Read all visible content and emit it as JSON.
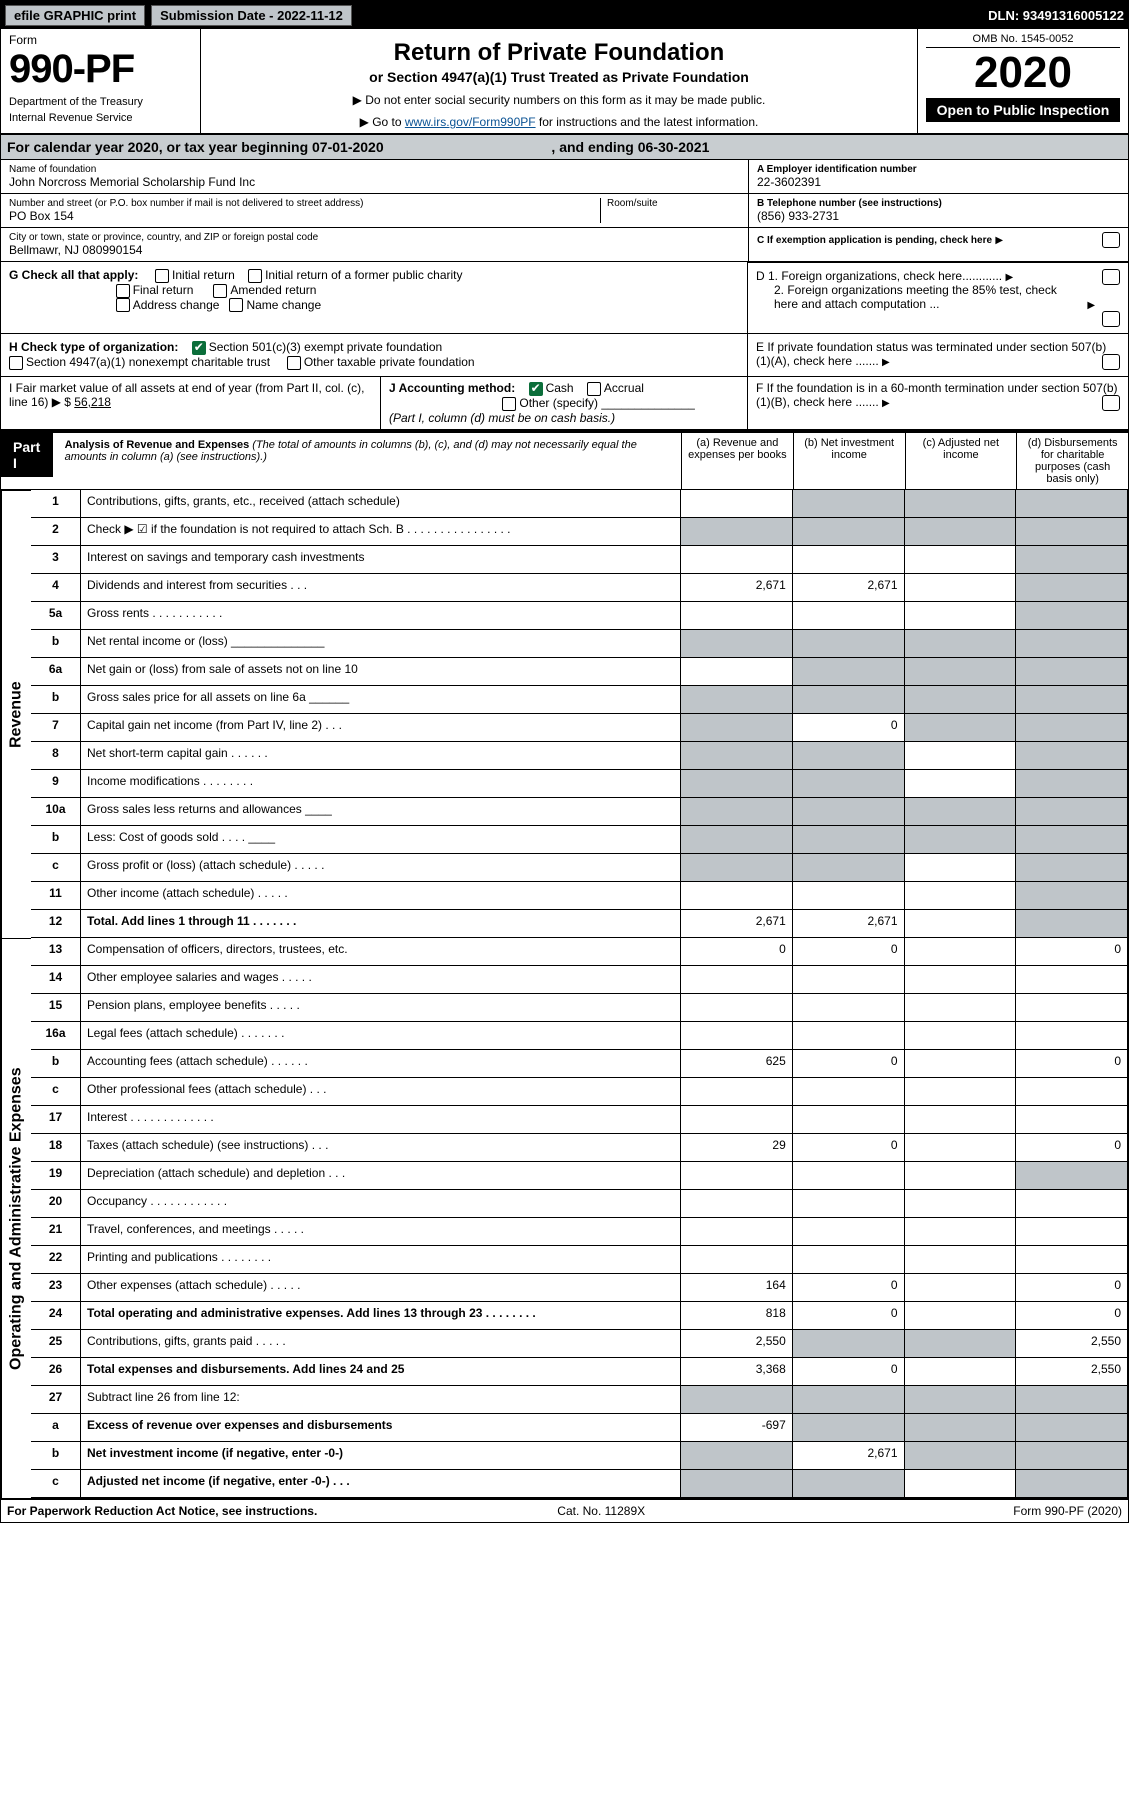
{
  "topbar": {
    "efile": "efile GRAPHIC print",
    "subdate_label": "Submission Date - 2022-11-12",
    "dln": "DLN: 93491316005122"
  },
  "header": {
    "form_label": "Form",
    "form_no": "990-PF",
    "dept1": "Department of the Treasury",
    "dept2": "Internal Revenue Service",
    "title": "Return of Private Foundation",
    "subtitle": "or Section 4947(a)(1) Trust Treated as Private Foundation",
    "note1": "▶ Do not enter social security numbers on this form as it may be made public.",
    "note2_pre": "▶ Go to ",
    "note2_link": "www.irs.gov/Form990PF",
    "note2_post": " for instructions and the latest information.",
    "omb": "OMB No. 1545-0052",
    "year": "2020",
    "badge": "Open to Public Inspection"
  },
  "cal": {
    "text_a": "For calendar year 2020, or tax year beginning 07-01-2020",
    "text_b": ", and ending 06-30-2021"
  },
  "ident": {
    "name_lbl": "Name of foundation",
    "name": "John Norcross Memorial Scholarship Fund Inc",
    "addr_lbl": "Number and street (or P.O. box number if mail is not delivered to street address)",
    "addr": "PO Box 154",
    "room_lbl": "Room/suite",
    "city_lbl": "City or town, state or province, country, and ZIP or foreign postal code",
    "city": "Bellmawr, NJ 080990154",
    "a_lbl": "A Employer identification number",
    "a_val": "22-3602391",
    "b_lbl": "B Telephone number (see instructions)",
    "b_val": "(856) 933-2731",
    "c_lbl": "C If exemption application is pending, check here"
  },
  "checks": {
    "g_lbl": "G Check all that apply:",
    "g_opts": [
      "Initial return",
      "Initial return of a former public charity",
      "Final return",
      "Amended return",
      "Address change",
      "Name change"
    ],
    "h_lbl": "H Check type of organization:",
    "h_opt1": "Section 501(c)(3) exempt private foundation",
    "h_opt2": "Section 4947(a)(1) nonexempt charitable trust",
    "h_opt3": "Other taxable private foundation",
    "d1": "D 1. Foreign organizations, check here............",
    "d2": "2. Foreign organizations meeting the 85% test, check here and attach computation ...",
    "e": "E  If private foundation status was terminated under section 507(b)(1)(A), check here .......",
    "f": "F  If the foundation is in a 60-month termination under section 507(b)(1)(B), check here ......."
  },
  "acct": {
    "i_lbl": "I Fair market value of all assets at end of year (from Part II, col. (c), line 16) ▶ $",
    "i_val": "56,218",
    "j_lbl": "J Accounting method:",
    "j_cash": "Cash",
    "j_accr": "Accrual",
    "j_other": "Other (specify)",
    "j_note": "(Part I, column (d) must be on cash basis.)"
  },
  "part1": {
    "tag": "Part I",
    "title": "Analysis of Revenue and Expenses",
    "note": " (The total of amounts in columns (b), (c), and (d) may not necessarily equal the amounts in column (a) (see instructions).)",
    "col_a": "(a) Revenue and expenses per books",
    "col_b": "(b) Net investment income",
    "col_c": "(c) Adjusted net income",
    "col_d": "(d) Disbursements for charitable purposes (cash basis only)"
  },
  "section_labels": {
    "rev": "Revenue",
    "exp": "Operating and Administrative Expenses"
  },
  "rows": [
    {
      "ln": "1",
      "desc": "Contributions, gifts, grants, etc., received (attach schedule)",
      "a": "",
      "b": "g",
      "c": "g",
      "d": "g"
    },
    {
      "ln": "2",
      "desc": "Check ▶ ☑ if the foundation is not required to attach Sch. B   .  .  .  .  .  .  .  .  .  .  .  .  .  .  .  .",
      "a": "g",
      "b": "g",
      "c": "g",
      "d": "g"
    },
    {
      "ln": "3",
      "desc": "Interest on savings and temporary cash investments",
      "a": "",
      "b": "",
      "c": "",
      "d": "g"
    },
    {
      "ln": "4",
      "desc": "Dividends and interest from securities   .   .   .",
      "a": "2,671",
      "b": "2,671",
      "c": "",
      "d": "g"
    },
    {
      "ln": "5a",
      "desc": "Gross rents   .   .   .   .   .   .   .   .   .   .   .",
      "a": "",
      "b": "",
      "c": "",
      "d": "g"
    },
    {
      "ln": "b",
      "desc": "Net rental income or (loss)  ______________",
      "a": "g",
      "b": "g",
      "c": "g",
      "d": "g"
    },
    {
      "ln": "6a",
      "desc": "Net gain or (loss) from sale of assets not on line 10",
      "a": "",
      "b": "g",
      "c": "g",
      "d": "g"
    },
    {
      "ln": "b",
      "desc": "Gross sales price for all assets on line 6a ______",
      "a": "g",
      "b": "g",
      "c": "g",
      "d": "g"
    },
    {
      "ln": "7",
      "desc": "Capital gain net income (from Part IV, line 2)   .   .   .",
      "a": "g",
      "b": "0",
      "c": "g",
      "d": "g"
    },
    {
      "ln": "8",
      "desc": "Net short-term capital gain   .   .   .   .   .   .",
      "a": "g",
      "b": "g",
      "c": "",
      "d": "g"
    },
    {
      "ln": "9",
      "desc": "Income modifications   .   .   .   .   .   .   .   .",
      "a": "g",
      "b": "g",
      "c": "",
      "d": "g"
    },
    {
      "ln": "10a",
      "desc": "Gross sales less returns and allowances  ____",
      "a": "g",
      "b": "g",
      "c": "g",
      "d": "g"
    },
    {
      "ln": "b",
      "desc": "Less: Cost of goods sold   .   .   .   .  ____",
      "a": "g",
      "b": "g",
      "c": "g",
      "d": "g"
    },
    {
      "ln": "c",
      "desc": "Gross profit or (loss) (attach schedule)   .   .   .   .   .",
      "a": "g",
      "b": "g",
      "c": "",
      "d": "g"
    },
    {
      "ln": "11",
      "desc": "Other income (attach schedule)   .   .   .   .   .",
      "a": "",
      "b": "",
      "c": "",
      "d": "g"
    },
    {
      "ln": "12",
      "desc": "Total. Add lines 1 through 11   .   .   .   .   .   .   .",
      "a": "2,671",
      "b": "2,671",
      "c": "",
      "d": "g",
      "bold": true
    },
    {
      "ln": "13",
      "desc": "Compensation of officers, directors, trustees, etc.",
      "a": "0",
      "b": "0",
      "c": "",
      "d": "0"
    },
    {
      "ln": "14",
      "desc": "Other employee salaries and wages   .   .   .   .   .",
      "a": "",
      "b": "",
      "c": "",
      "d": ""
    },
    {
      "ln": "15",
      "desc": "Pension plans, employee benefits   .   .   .   .   .",
      "a": "",
      "b": "",
      "c": "",
      "d": ""
    },
    {
      "ln": "16a",
      "desc": "Legal fees (attach schedule)   .   .   .   .   .   .   .",
      "a": "",
      "b": "",
      "c": "",
      "d": ""
    },
    {
      "ln": "b",
      "desc": "Accounting fees (attach schedule)   .   .   .   .   .   .",
      "a": "625",
      "b": "0",
      "c": "",
      "d": "0"
    },
    {
      "ln": "c",
      "desc": "Other professional fees (attach schedule)   .   .   .",
      "a": "",
      "b": "",
      "c": "",
      "d": ""
    },
    {
      "ln": "17",
      "desc": "Interest   .   .   .   .   .   .   .   .   .   .   .   .   .",
      "a": "",
      "b": "",
      "c": "",
      "d": ""
    },
    {
      "ln": "18",
      "desc": "Taxes (attach schedule) (see instructions)   .   .   .",
      "a": "29",
      "b": "0",
      "c": "",
      "d": "0"
    },
    {
      "ln": "19",
      "desc": "Depreciation (attach schedule) and depletion   .   .   .",
      "a": "",
      "b": "",
      "c": "",
      "d": "g"
    },
    {
      "ln": "20",
      "desc": "Occupancy   .   .   .   .   .   .   .   .   .   .   .   .",
      "a": "",
      "b": "",
      "c": "",
      "d": ""
    },
    {
      "ln": "21",
      "desc": "Travel, conferences, and meetings   .   .   .   .   .",
      "a": "",
      "b": "",
      "c": "",
      "d": ""
    },
    {
      "ln": "22",
      "desc": "Printing and publications   .   .   .   .   .   .   .   .",
      "a": "",
      "b": "",
      "c": "",
      "d": ""
    },
    {
      "ln": "23",
      "desc": "Other expenses (attach schedule)   .   .   .   .   .",
      "a": "164",
      "b": "0",
      "c": "",
      "d": "0"
    },
    {
      "ln": "24",
      "desc": "Total operating and administrative expenses. Add lines 13 through 23   .   .   .   .   .   .   .   .",
      "a": "818",
      "b": "0",
      "c": "",
      "d": "0",
      "bold": true
    },
    {
      "ln": "25",
      "desc": "Contributions, gifts, grants paid   .   .   .   .   .",
      "a": "2,550",
      "b": "g",
      "c": "g",
      "d": "2,550"
    },
    {
      "ln": "26",
      "desc": "Total expenses and disbursements. Add lines 24 and 25",
      "a": "3,368",
      "b": "0",
      "c": "",
      "d": "2,550",
      "bold": true
    },
    {
      "ln": "27",
      "desc": "Subtract line 26 from line 12:",
      "a": "g",
      "b": "g",
      "c": "g",
      "d": "g"
    },
    {
      "ln": "a",
      "desc": "Excess of revenue over expenses and disbursements",
      "a": "-697",
      "b": "g",
      "c": "g",
      "d": "g",
      "bold": true
    },
    {
      "ln": "b",
      "desc": "Net investment income (if negative, enter -0-)",
      "a": "g",
      "b": "2,671",
      "c": "g",
      "d": "g",
      "bold": true
    },
    {
      "ln": "c",
      "desc": "Adjusted net income (if negative, enter -0-)   .   .   .",
      "a": "g",
      "b": "g",
      "c": "",
      "d": "g",
      "bold": true
    }
  ],
  "foot": {
    "l": "For Paperwork Reduction Act Notice, see instructions.",
    "m": "Cat. No. 11289X",
    "r": "Form 990-PF (2020)"
  },
  "colors": {
    "header_grey": "#c8cdd0",
    "cell_grey": "#bfc5c9",
    "check_green": "#0b6e3a",
    "link_blue": "#0b5394"
  }
}
